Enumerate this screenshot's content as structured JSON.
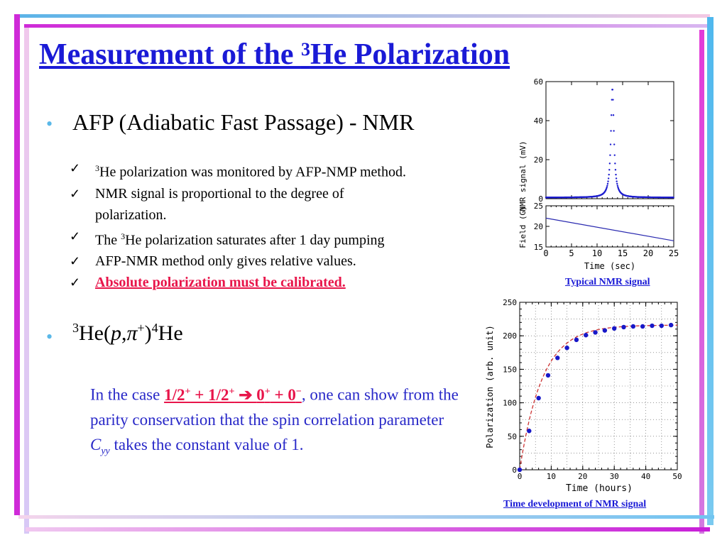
{
  "slide": {
    "title_prefix": "Measurement of the ",
    "title_sup": "3",
    "title_suffix": "He Polarization"
  },
  "bullet1": {
    "text": "AFP (Adiabatic Fast Passage) - NMR",
    "checks": [
      {
        "sup": "3",
        "text": "He polarization was monitored by AFP-NMP method."
      },
      {
        "text1": "NMR signal is proportional to the degree of",
        "text2": "polarization."
      },
      {
        "pre": "The ",
        "sup": "3",
        "post": "He polarization saturates after 1 day pumping"
      },
      {
        "text": "AFP-NMR method only gives relative values."
      },
      {
        "text": "Absolute polarization must be calibrated."
      }
    ]
  },
  "bullet2": {
    "sup1": "3",
    "he1": "He(",
    "p": "p",
    "comma": ",",
    "pi": "π",
    "plus": "+",
    "close": ")",
    "sup2": "4",
    "he2": "He"
  },
  "paragraph": {
    "pre": "In the case ",
    "r1": "1/2",
    "r1sup": "+",
    "r2": " + 1/2",
    "r2sup": "+",
    "arrow": " ➔ ",
    "r3": "0",
    "r3sup": "+",
    "r4": " + 0",
    "r4sup": "−",
    "post": ", one can show from the parity conservation that the spin correlation parameter ",
    "cyy": "C",
    "cyy_sub": "yy",
    "end": " takes the constant value of 1."
  },
  "nmr_plot": {
    "caption": "Typical NMR signal",
    "ylabel_top": "NMR signal  (mV)",
    "ylabel_bottom": "Field (G)",
    "xlabel": "Time (sec)",
    "top_yticks": [
      "0",
      "20",
      "40",
      "60"
    ],
    "bottom_yticks": [
      "15",
      "20",
      "25"
    ],
    "xticks": [
      "0",
      "5",
      "10",
      "15",
      "20",
      "25"
    ],
    "colors": {
      "signal": "#1e1ecf",
      "line": "#2a2ab0"
    }
  },
  "polarization_plot": {
    "caption": "Time development of NMR signal",
    "ylabel": "Polarization (arb. unit)",
    "xlabel": "Time (hours)",
    "yticks": [
      "0",
      "50",
      "100",
      "150",
      "200",
      "250"
    ],
    "xticks": [
      "0",
      "10",
      "20",
      "30",
      "40",
      "50"
    ],
    "colors": {
      "points": "#1818c8",
      "fit": "#cc3333"
    }
  },
  "chart_data": [
    {
      "type": "scatter",
      "xlabel": "Time (sec)",
      "ylabel": "NMR signal  (mV)",
      "xlim": [
        0,
        25
      ],
      "ylim": [
        0,
        60
      ],
      "peak": {
        "x": 13,
        "y": 56
      },
      "field_panel": {
        "ylabel": "Field (G)",
        "ylim": [
          15,
          25
        ],
        "x": [
          0,
          25
        ],
        "y": [
          22,
          16.5
        ]
      }
    },
    {
      "type": "scatter",
      "xlabel": "Time (hours)",
      "ylabel": "Polarization (arb. unit)",
      "xlim": [
        0,
        50
      ],
      "ylim": [
        0,
        250
      ],
      "x": [
        0,
        3,
        6,
        9,
        12,
        15,
        18,
        21,
        24,
        27,
        30,
        33,
        36,
        39,
        42,
        45,
        48
      ],
      "y": [
        0,
        58,
        107,
        141,
        167,
        182,
        194,
        201,
        205,
        208,
        211,
        213,
        214,
        214,
        215,
        215,
        216
      ]
    }
  ]
}
